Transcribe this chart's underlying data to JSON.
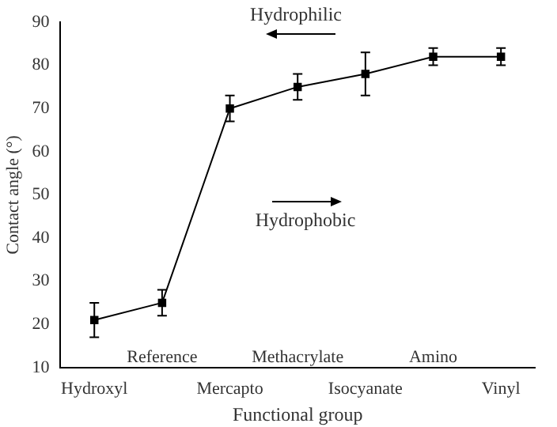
{
  "chart_data": {
    "type": "line",
    "xlabel": "Functional group",
    "ylabel": "Contact angle (°)",
    "categories": [
      "Hydroxyl",
      "Reference",
      "Mercapto",
      "Methacrylate",
      "Isocyanate",
      "Amino",
      "Vinyl"
    ],
    "values": [
      21,
      25,
      70,
      75,
      78,
      82,
      82
    ],
    "errors": [
      4,
      3,
      3,
      3,
      5,
      2,
      2
    ],
    "color": "#000000",
    "marker": "square",
    "line_style": "solid",
    "ylim": [
      10,
      90
    ],
    "yticks": [
      10,
      20,
      30,
      40,
      50,
      60,
      70,
      80,
      90
    ],
    "grid": false,
    "legend": false,
    "annotations": [
      "Hydrophilic",
      "Hydrophobic"
    ]
  }
}
